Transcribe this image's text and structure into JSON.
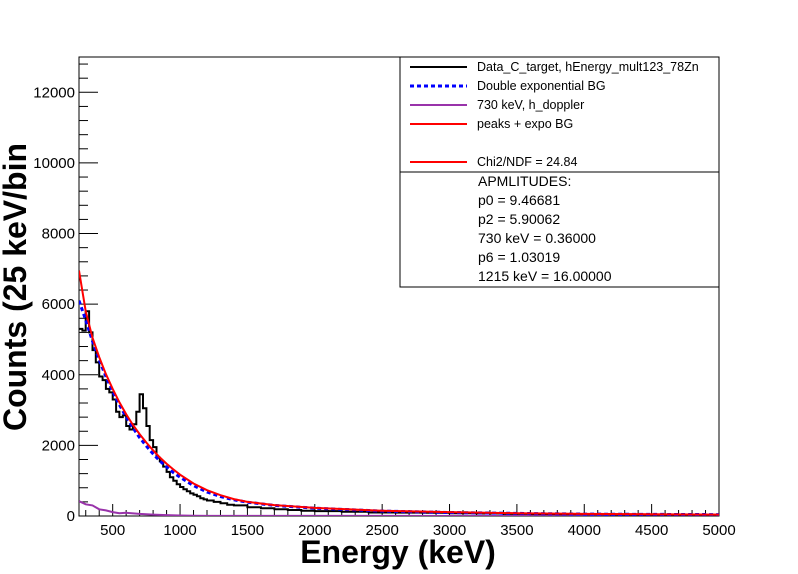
{
  "chart_data": {
    "type": "line",
    "xlabel": "Energy (keV)",
    "ylabel": "Counts (25 keV/bin",
    "xlim": [
      250,
      5000
    ],
    "ylim": [
      0,
      13000
    ],
    "x_ticks": [
      500,
      1000,
      1500,
      2000,
      2500,
      3000,
      3500,
      4000,
      4500,
      5000
    ],
    "y_ticks": [
      0,
      2000,
      4000,
      6000,
      8000,
      10000,
      12000
    ],
    "grid": false,
    "legend_position": "top-right",
    "series": [
      {
        "name": "Data_C_target, hEnergy_mult123_78Zn",
        "color": "#000000",
        "style": "histogram",
        "x": [
          250,
          275,
          300,
          325,
          350,
          375,
          400,
          425,
          450,
          475,
          500,
          525,
          550,
          575,
          600,
          625,
          650,
          675,
          700,
          725,
          750,
          775,
          800,
          825,
          850,
          875,
          900,
          925,
          950,
          975,
          1000,
          1025,
          1050,
          1075,
          1100,
          1125,
          1150,
          1175,
          1200,
          1250,
          1300,
          1350,
          1400,
          1500,
          1600,
          1700,
          1800,
          1900,
          2000,
          2200,
          2400,
          2600,
          2800,
          3000,
          3200,
          3400,
          3600,
          3800,
          4000,
          4200,
          4400,
          4600,
          4800
        ],
        "values": [
          5300,
          5250,
          5800,
          5200,
          4700,
          4350,
          3950,
          3850,
          3600,
          3500,
          3300,
          2950,
          2800,
          2850,
          2550,
          2450,
          2600,
          2950,
          3450,
          3050,
          2550,
          2150,
          1950,
          1650,
          1550,
          1400,
          1250,
          1100,
          1000,
          900,
          820,
          760,
          700,
          640,
          600,
          560,
          500,
          470,
          440,
          400,
          360,
          320,
          300,
          250,
          220,
          190,
          170,
          150,
          140,
          120,
          100,
          95,
          90,
          80,
          70,
          60,
          55,
          50,
          45,
          40,
          35,
          30,
          30
        ]
      },
      {
        "name": "Double exponential BG",
        "color": "#0000ff",
        "style": "dashed",
        "x": [
          250,
          300,
          350,
          400,
          450,
          500,
          550,
          600,
          650,
          700,
          750,
          800,
          850,
          900,
          950,
          1000,
          1100,
          1200,
          1300,
          1400,
          1500,
          1700,
          2000,
          2500,
          3000,
          3500,
          4000,
          4500,
          5000
        ],
        "values": [
          6100,
          5550,
          4950,
          4420,
          3950,
          3530,
          3150,
          2800,
          2500,
          2220,
          1980,
          1760,
          1560,
          1390,
          1230,
          1100,
          860,
          680,
          550,
          460,
          390,
          300,
          220,
          140,
          100,
          75,
          55,
          45,
          40
        ]
      },
      {
        "name": "730 keV, h_doppler",
        "color": "#9933aa",
        "style": "solid",
        "x": [
          250,
          300,
          350,
          400,
          450,
          500,
          550,
          600,
          700,
          800,
          900,
          1000,
          1100,
          1200,
          5000
        ],
        "values": [
          420,
          330,
          300,
          190,
          160,
          110,
          80,
          90,
          60,
          40,
          25,
          15,
          8,
          3,
          0
        ]
      },
      {
        "name": " peaks + expo BG",
        "color": "#ff0000",
        "style": "solid",
        "x": [
          250,
          300,
          350,
          400,
          450,
          500,
          550,
          600,
          650,
          700,
          750,
          800,
          850,
          900,
          950,
          1000,
          1100,
          1200,
          1300,
          1400,
          1500,
          1700,
          2000,
          2500,
          3000,
          3500,
          4000,
          4500,
          5000
        ],
        "values": [
          6950,
          5800,
          5050,
          4500,
          4020,
          3600,
          3220,
          2880,
          2580,
          2320,
          2080,
          1860,
          1660,
          1480,
          1320,
          1170,
          920,
          730,
          590,
          480,
          400,
          310,
          230,
          150,
          110,
          80,
          60,
          50,
          40
        ]
      }
    ],
    "legend": [
      {
        "label": "Data_C_target, hEnergy_mult123_78Zn",
        "color": "#000000",
        "style": "solid"
      },
      {
        "label": "Double exponential BG",
        "color": "#0000ff",
        "style": "dashed"
      },
      {
        "label": "730 keV, h_doppler",
        "color": "#9933aa",
        "style": "solid"
      },
      {
        "label": " peaks + expo BG",
        "color": "#ff0000",
        "style": "solid"
      },
      {
        "label": "",
        "color": "",
        "style": "none"
      },
      {
        "label": "Chi2/NDF = 24.84",
        "color": "#ff0000",
        "style": "solid"
      }
    ],
    "stats": [
      "APMLITUDES:",
      "p0 = 9.46681",
      "p2 = 5.90062",
      "730 keV = 0.36000",
      "p6 = 1.03019",
      "1215 keV = 16.00000"
    ]
  }
}
